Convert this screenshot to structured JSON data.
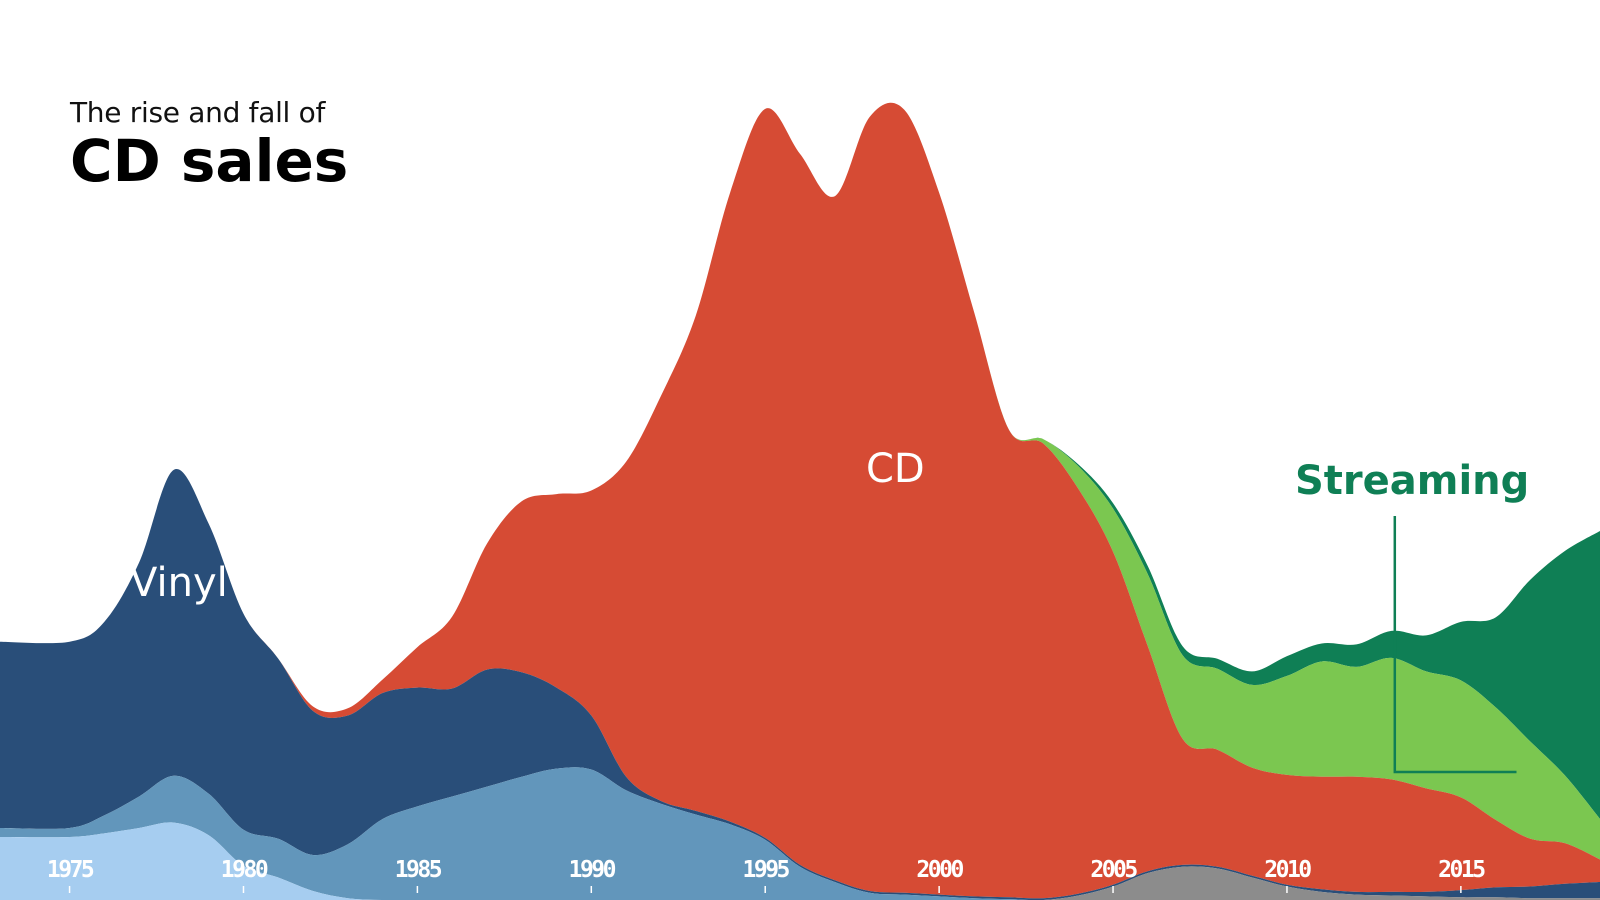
{
  "chart_data": {
    "type": "area",
    "style": "streamgraph",
    "title": "CD sales",
    "subtitle": "The rise and fall of",
    "x": [
      1973,
      1975,
      1976,
      1977,
      1978,
      1979,
      1980,
      1981,
      1982,
      1983,
      1984,
      1985,
      1986,
      1987,
      1988,
      1989,
      1990,
      1991,
      1992,
      1993,
      1994,
      1995,
      1996,
      1997,
      1998,
      1999,
      2000,
      2001,
      2002,
      2003,
      2004,
      2005,
      2006,
      2007,
      2008,
      2009,
      2010,
      2011,
      2012,
      2013,
      2014,
      2015,
      2016,
      2017,
      2018,
      2019
    ],
    "series": [
      {
        "key": "other",
        "color": "#8c8c8c",
        "values": [
          0,
          0,
          0,
          0,
          0,
          0,
          0,
          0,
          0,
          0,
          0,
          0,
          0,
          0,
          0,
          0,
          0,
          0,
          0,
          0,
          0,
          0,
          0,
          0,
          0,
          0,
          0,
          0,
          0,
          0,
          0.5,
          1.5,
          3.0,
          3.7,
          3.5,
          2.5,
          1.5,
          0.9,
          0.6,
          0.5,
          0.4,
          0.3,
          0.3,
          0.2,
          0.2,
          0.2
        ]
      },
      {
        "key": "cassette",
        "color": "#a6cdf0",
        "values": [
          7.0,
          7.0,
          7.4,
          8.0,
          8.6,
          7.2,
          3.8,
          2.5,
          1.0,
          0.2,
          0,
          0,
          0,
          0,
          0,
          0,
          0,
          0,
          0,
          0,
          0,
          0,
          0,
          0,
          0,
          0,
          0,
          0,
          0,
          0,
          0,
          0,
          0,
          0,
          0,
          0,
          0,
          0,
          0,
          0,
          0,
          0,
          0,
          0,
          0,
          0
        ]
      },
      {
        "key": "vinyl-light",
        "color": "#6296bb",
        "values": [
          1.0,
          1.0,
          2.0,
          3.5,
          5.2,
          4.6,
          4.0,
          4.3,
          4.0,
          6.0,
          9.0,
          10.4,
          11.5,
          12.6,
          13.7,
          14.6,
          14.5,
          12.2,
          10.7,
          9.5,
          8.4,
          6.7,
          3.7,
          2.0,
          0.8,
          0.6,
          0.4,
          0.2,
          0.1,
          0,
          0,
          0,
          0,
          0,
          0,
          0,
          0,
          0,
          0,
          0,
          0,
          0,
          0,
          0,
          0,
          0
        ]
      },
      {
        "key": "Vinyl",
        "color": "#294e79",
        "values": [
          20.7,
          20.7,
          21.5,
          26.0,
          34.0,
          30.0,
          24.0,
          20.0,
          16.0,
          14.3,
          14.0,
          13.2,
          12.0,
          13.0,
          11.6,
          9.0,
          6.0,
          1.5,
          0.3,
          0.4,
          0.3,
          0.2,
          0.2,
          0.2,
          0.2,
          0.2,
          0.2,
          0.2,
          0.2,
          0.2,
          0.2,
          0.2,
          0.2,
          0.2,
          0.2,
          0.2,
          0.2,
          0.3,
          0.3,
          0.4,
          0.5,
          0.8,
          1.1,
          1.3,
          1.6,
          1.8
        ]
      },
      {
        "key": "CD",
        "color": "#d64b34",
        "values": [
          0,
          0,
          0,
          0,
          0,
          0,
          0,
          0,
          0.5,
          0.8,
          1.5,
          4.5,
          8.0,
          14.0,
          19.0,
          21.5,
          25.0,
          35.0,
          45.0,
          55.0,
          70.0,
          81.0,
          79.0,
          76.0,
          86.0,
          87.0,
          78.0,
          65.0,
          52.0,
          50.5,
          45.0,
          37.0,
          25.0,
          14.0,
          13.0,
          12.0,
          12.2,
          12.5,
          12.8,
          12.5,
          11.5,
          10.3,
          7.5,
          5.3,
          4.5,
          2.5
        ]
      },
      {
        "key": "Downloads",
        "color": "#7bc750",
        "values": [
          0,
          0,
          0,
          0,
          0,
          0,
          0,
          0,
          0,
          0,
          0,
          0,
          0,
          0,
          0,
          0,
          0,
          0,
          0,
          0,
          0,
          0,
          0,
          0,
          0,
          0,
          0,
          0,
          0,
          0.5,
          2.5,
          4.8,
          8.0,
          9.3,
          9.0,
          9.2,
          11.0,
          12.8,
          12.2,
          13.5,
          13.0,
          13.0,
          12.5,
          10.8,
          7.5,
          4.5
        ]
      },
      {
        "key": "Streaming",
        "color": "#0f7f55",
        "values": [
          0,
          0,
          0,
          0,
          0,
          0,
          0,
          0,
          0,
          0,
          0,
          0,
          0,
          0,
          0,
          0,
          0,
          0,
          0,
          0,
          0,
          0,
          0,
          0,
          0,
          0,
          0,
          0,
          0,
          0,
          0.2,
          0.6,
          0.9,
          1.0,
          1.1,
          1.5,
          2.2,
          2.0,
          2.5,
          3.0,
          4.0,
          6.5,
          10.0,
          18.0,
          25.0,
          32.0
        ]
      }
    ],
    "ticks": [
      1975,
      1980,
      1985,
      1990,
      1995,
      2000,
      2005,
      2010,
      2015
    ],
    "labels": {
      "vinyl": "Vinyl",
      "cd": "CD",
      "streaming": "Streaming"
    },
    "xlim": [
      1973,
      2019
    ],
    "ylim": [
      0,
      90
    ],
    "grid": false,
    "legend": "none",
    "label_colors": {
      "vinyl": "#ffffff",
      "cd": "#ffffff",
      "streaming": "#0f7f55"
    }
  }
}
